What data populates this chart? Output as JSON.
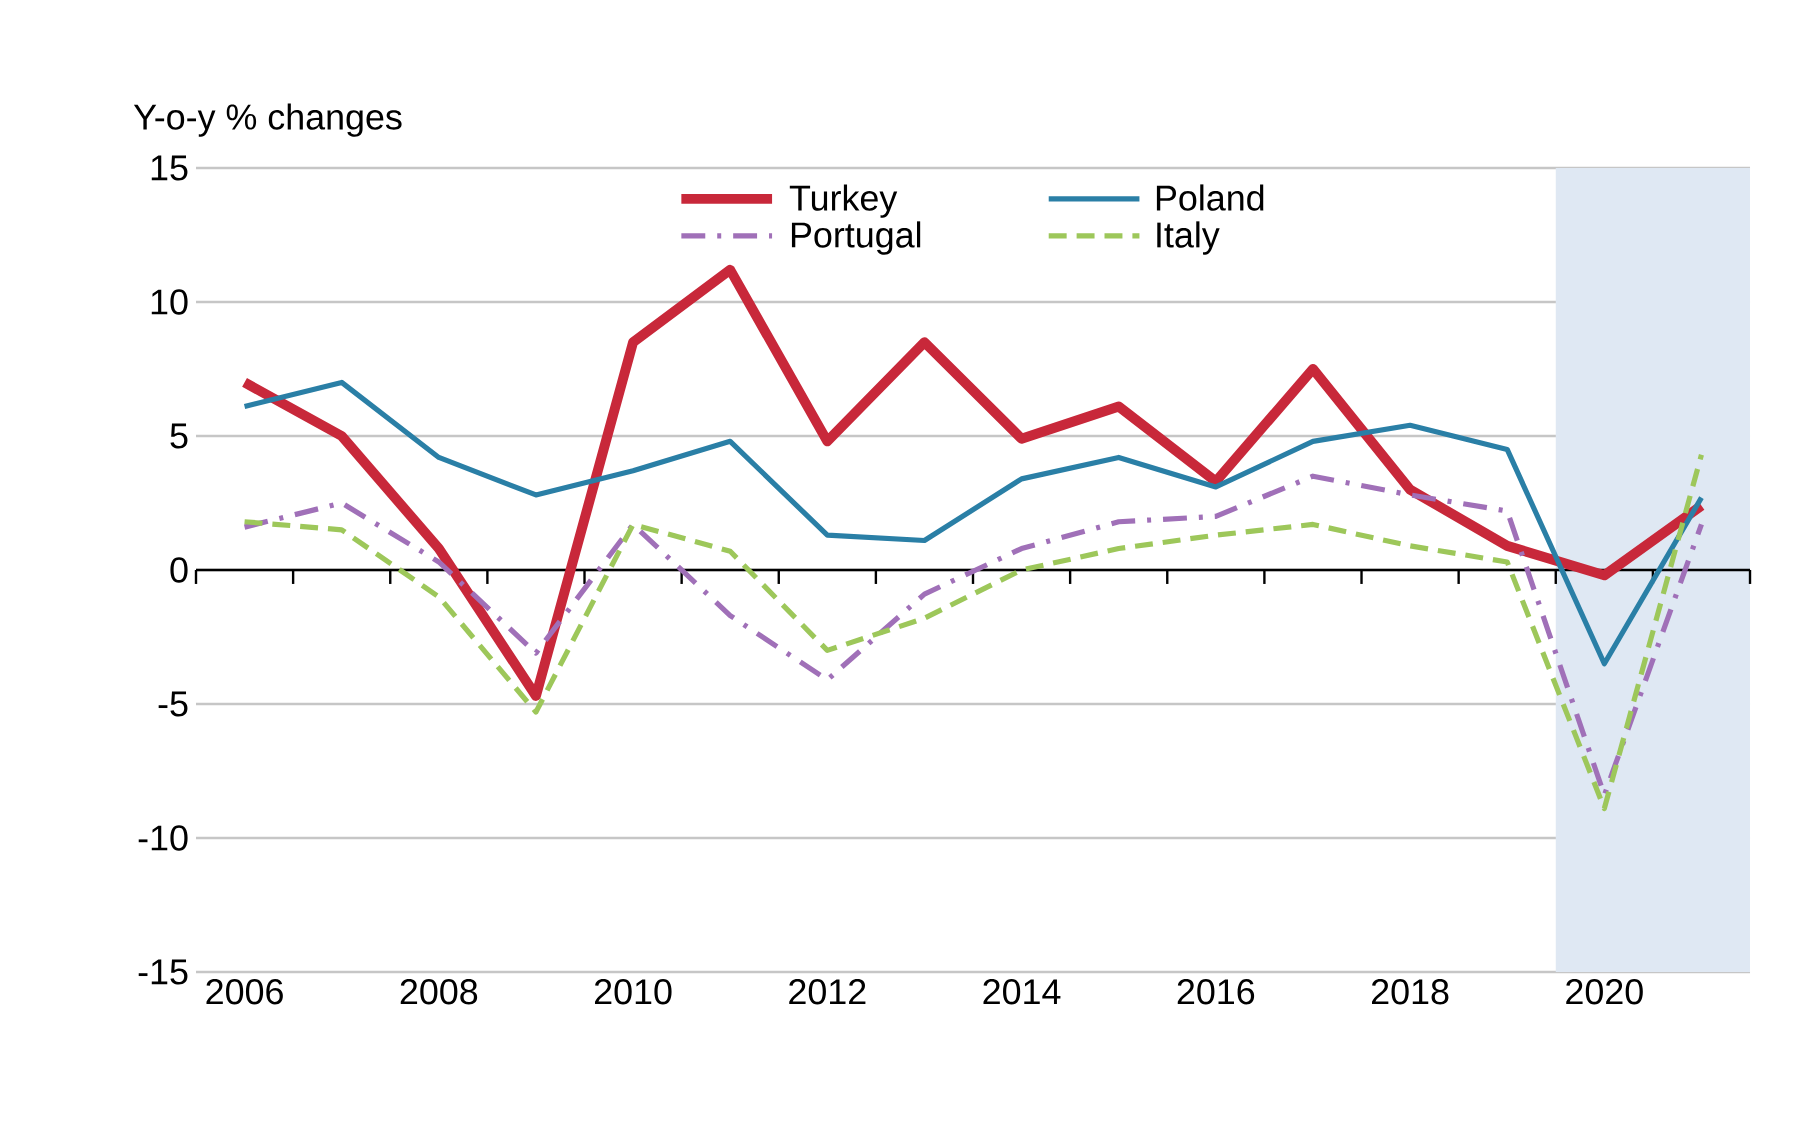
{
  "chart_data": {
    "type": "line",
    "ylabel": "Y-o-y % changes",
    "x": [
      2006,
      2007,
      2008,
      2009,
      2010,
      2011,
      2012,
      2013,
      2014,
      2015,
      2016,
      2017,
      2018,
      2019,
      2020,
      2021
    ],
    "series": [
      {
        "name": "Turkey",
        "color": "#c8283a",
        "line_style": "solid",
        "values": [
          7.0,
          5.0,
          0.8,
          -4.7,
          8.5,
          11.2,
          4.8,
          8.5,
          4.9,
          6.1,
          3.3,
          7.5,
          3.0,
          0.9,
          -0.2,
          2.4
        ]
      },
      {
        "name": "Poland",
        "color": "#2a7fa6",
        "line_style": "solid",
        "values": [
          6.1,
          7.0,
          4.2,
          2.8,
          3.7,
          4.8,
          1.3,
          1.1,
          3.4,
          4.2,
          3.1,
          4.8,
          5.4,
          4.5,
          -3.5,
          2.7
        ]
      },
      {
        "name": "Portugal",
        "color": "#a070b8",
        "line_style": "dashdot",
        "values": [
          1.6,
          2.5,
          0.3,
          -3.1,
          1.7,
          -1.7,
          -4.1,
          -0.9,
          0.8,
          1.8,
          2.0,
          3.5,
          2.8,
          2.2,
          -8.4,
          1.7
        ]
      },
      {
        "name": "Italy",
        "color": "#9dc75a",
        "line_style": "dashed",
        "values": [
          1.8,
          1.5,
          -1.0,
          -5.3,
          1.7,
          0.7,
          -3.0,
          -1.8,
          0.0,
          0.8,
          1.3,
          1.7,
          0.9,
          0.3,
          -8.9,
          4.3
        ]
      }
    ],
    "xlim": [
      2005.5,
      2021.5
    ],
    "xticks": [
      2006,
      2008,
      2010,
      2012,
      2014,
      2016,
      2018,
      2020
    ],
    "ylim": [
      -15,
      15
    ],
    "yticks": [
      -15,
      -10,
      -5,
      0,
      5,
      10,
      15
    ],
    "bands": [
      {
        "axis": "x",
        "from": 2019.5,
        "to": 2021.5,
        "color": "#dfe8f3"
      }
    ],
    "grid": "y",
    "legend": "top"
  }
}
